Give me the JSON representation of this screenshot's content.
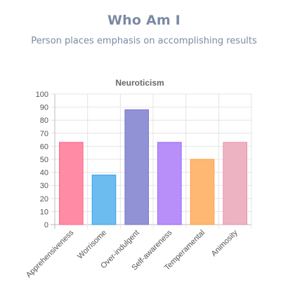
{
  "header": {
    "title": "Who Am I",
    "subtitle": "Person places emphasis on accomplishing results"
  },
  "chart_data": {
    "type": "bar",
    "title": "Neuroticism",
    "xlabel": "",
    "ylabel": "",
    "ylim": [
      0,
      100
    ],
    "yticks": [
      0,
      10,
      20,
      30,
      40,
      50,
      60,
      70,
      80,
      90,
      100
    ],
    "grid": true,
    "categories": [
      "Apprehensiveness",
      "Worrisome",
      "Over-indulgent",
      "Self-awareness",
      "Temperamental",
      "Animosity"
    ],
    "values": [
      63,
      38,
      88,
      63,
      50,
      63
    ],
    "colors": [
      "#ff8ca4",
      "#6cbcef",
      "#9191d6",
      "#b88ef8",
      "#ffb774",
      "#eeb3c2"
    ],
    "border_colors": [
      "#ff6384",
      "#36a2eb",
      "#7b7bd0",
      "#9966ff",
      "#ff9f40",
      "#e58fa5"
    ]
  }
}
